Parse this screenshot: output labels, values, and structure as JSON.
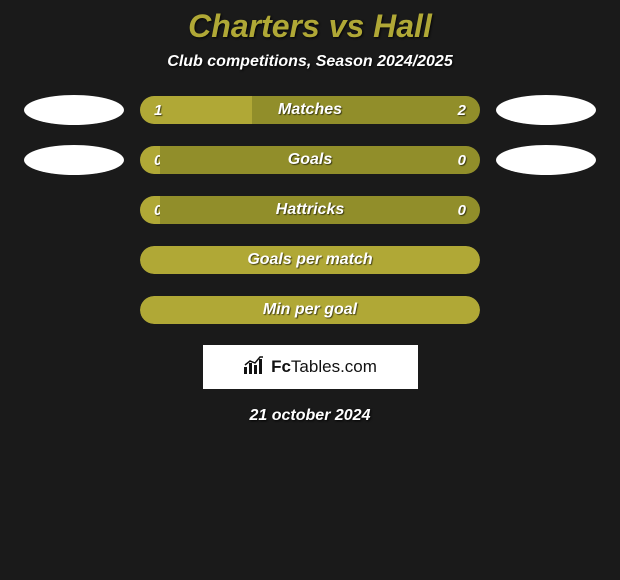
{
  "title": "Charters vs Hall",
  "subtitle": "Club competitions, Season 2024/2025",
  "colors": {
    "accent": "#b0a836",
    "accent_dark": "#918e2a",
    "bg": "#1a1a1a",
    "text": "#ffffff"
  },
  "bars": [
    {
      "label": "Matches",
      "left": "1",
      "right": "2",
      "left_pct": 33,
      "show_ovals": true,
      "split": true
    },
    {
      "label": "Goals",
      "left": "0",
      "right": "0",
      "left_pct": 6,
      "show_ovals": true,
      "split": true
    },
    {
      "label": "Hattricks",
      "left": "0",
      "right": "0",
      "left_pct": 6,
      "show_ovals": false,
      "split": true
    },
    {
      "label": "Goals per match",
      "left": "",
      "right": "",
      "left_pct": 0,
      "show_ovals": false,
      "split": false
    },
    {
      "label": "Min per goal",
      "left": "",
      "right": "",
      "left_pct": 0,
      "show_ovals": false,
      "split": false
    }
  ],
  "brand": {
    "prefix": "Fc",
    "suffix": "Tables.com"
  },
  "date": "21 october 2024"
}
